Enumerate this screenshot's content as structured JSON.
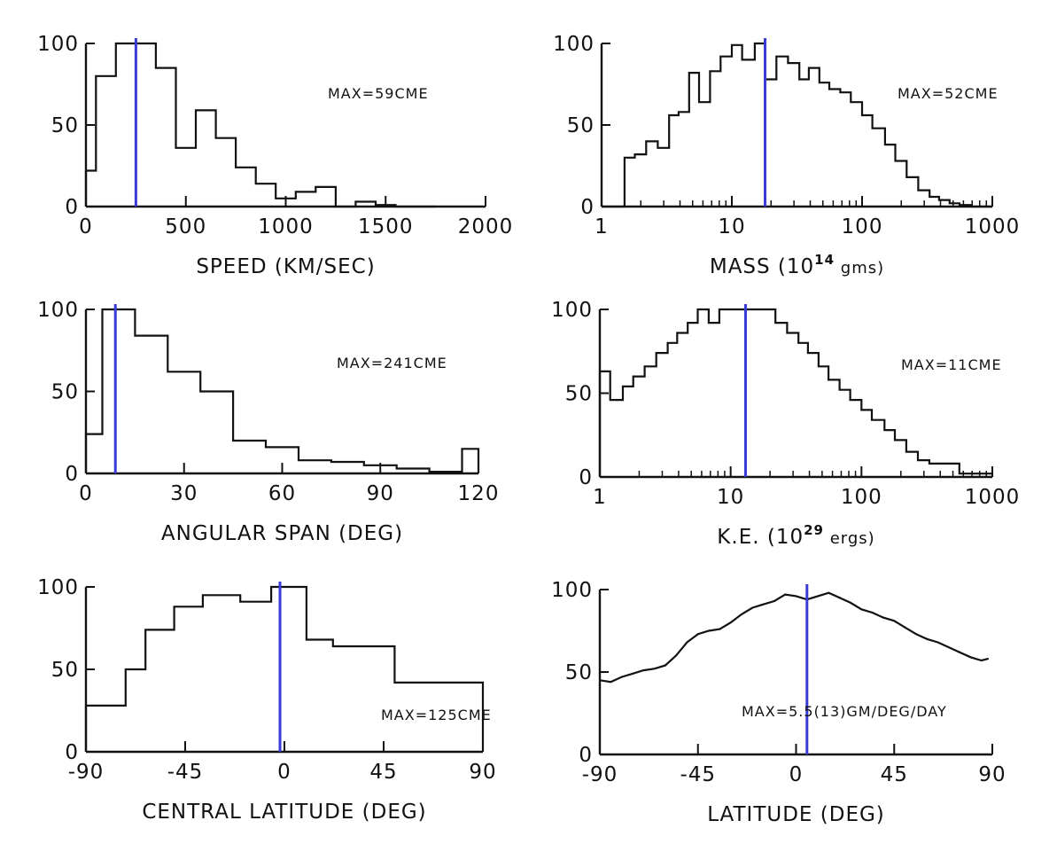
{
  "colors": {
    "marker": "#3a3ad6",
    "ink": "#111111"
  },
  "chart_data": [
    {
      "type": "histogram",
      "xlabel": "SPEED (KM/SEC)",
      "xlabel_sup": "",
      "xlabel_tail": "",
      "x_scale": "linear",
      "xlim": [
        0,
        2000
      ],
      "ylim": [
        0,
        100
      ],
      "xticks": [
        0,
        500,
        1000,
        1500,
        2000
      ],
      "xtick_labels": [
        "0",
        "500",
        "1000",
        "1500",
        "2000"
      ],
      "yticks": [
        0,
        50,
        100
      ],
      "ytick_labels": [
        "0",
        "50",
        "100"
      ],
      "annotation": "MAX=59CME",
      "marker_x": 250,
      "bin_edges": [
        0,
        50,
        150,
        250,
        350,
        450,
        550,
        650,
        750,
        850,
        950,
        1050,
        1150,
        1250,
        1350,
        1450,
        1550,
        1650,
        1750
      ],
      "values": [
        22,
        80,
        100,
        100,
        85,
        36,
        59,
        42,
        24,
        14,
        5,
        9,
        12,
        0,
        3,
        1,
        0,
        0
      ],
      "ymin_line": "minor"
    },
    {
      "type": "histogram",
      "xlabel": "MASS (10",
      "xlabel_sup": "14",
      "xlabel_tail": " gms)",
      "x_scale": "log",
      "xlim": [
        1,
        1000
      ],
      "ylim": [
        0,
        100
      ],
      "xticks": [
        1,
        10,
        100,
        1000
      ],
      "xtick_labels": [
        "1",
        "10",
        "100",
        "1000"
      ],
      "yticks": [
        0,
        50,
        100
      ],
      "ytick_labels": [
        "0",
        "50",
        "100"
      ],
      "annotation": "MAX=52CME",
      "marker_x": 18,
      "bin_edges": [
        1,
        1.2,
        1.5,
        1.8,
        2.2,
        2.7,
        3.3,
        3.9,
        4.7,
        5.6,
        6.8,
        8.2,
        10,
        12,
        15,
        18,
        22,
        27,
        33,
        39,
        47,
        56,
        68,
        82,
        100,
        120,
        150,
        180,
        220,
        270,
        330,
        390,
        470,
        560,
        680,
        820,
        1000
      ],
      "values": [
        0,
        0,
        30,
        32,
        40,
        36,
        56,
        58,
        82,
        64,
        83,
        92,
        99,
        90,
        100,
        78,
        92,
        88,
        78,
        85,
        76,
        72,
        70,
        64,
        56,
        48,
        38,
        28,
        18,
        10,
        6,
        4,
        2,
        1,
        0,
        0
      ]
    },
    {
      "type": "histogram",
      "xlabel": "ANGULAR SPAN (DEG)",
      "xlabel_sup": "",
      "xlabel_tail": "",
      "x_scale": "linear",
      "xlim": [
        0,
        120
      ],
      "ylim": [
        0,
        100
      ],
      "xticks": [
        0,
        30,
        60,
        90,
        120
      ],
      "xtick_labels": [
        "0",
        "30",
        "60",
        "90",
        "120"
      ],
      "yticks": [
        0,
        50,
        100
      ],
      "ytick_labels": [
        "0",
        "50",
        "100"
      ],
      "annotation": "MAX=241CME",
      "marker_x": 9,
      "bin_edges": [
        0,
        5,
        15,
        25,
        35,
        45,
        55,
        65,
        75,
        85,
        95,
        105,
        115,
        120
      ],
      "values": [
        24,
        100,
        84,
        62,
        50,
        20,
        16,
        8,
        7,
        5,
        3,
        1,
        15
      ]
    },
    {
      "type": "histogram",
      "xlabel": "K.E. (10",
      "xlabel_sup": "29",
      "xlabel_tail": " ergs)",
      "x_scale": "log",
      "xlim": [
        1,
        1000
      ],
      "ylim": [
        0,
        100
      ],
      "xticks": [
        1,
        10,
        100,
        1000
      ],
      "xtick_labels": [
        "1",
        "10",
        "100",
        "1000"
      ],
      "yticks": [
        0,
        50,
        100
      ],
      "ytick_labels": [
        "0",
        "50",
        "100"
      ],
      "annotation": "MAX=11CME",
      "marker_x": 13,
      "bin_edges": [
        1,
        1.2,
        1.5,
        1.8,
        2.2,
        2.7,
        3.3,
        3.9,
        4.7,
        5.6,
        6.8,
        8.2,
        10,
        12,
        15,
        18,
        22,
        27,
        33,
        39,
        47,
        56,
        68,
        82,
        100,
        120,
        150,
        180,
        220,
        270,
        330,
        390,
        470,
        560,
        680,
        820,
        1000
      ],
      "values": [
        63,
        46,
        54,
        60,
        66,
        74,
        80,
        86,
        92,
        100,
        92,
        100,
        100,
        100,
        100,
        100,
        92,
        86,
        80,
        74,
        66,
        58,
        52,
        46,
        40,
        34,
        28,
        22,
        15,
        10,
        8,
        8,
        8,
        2,
        2,
        2
      ]
    },
    {
      "type": "histogram",
      "xlabel": "CENTRAL LATITUDE (DEG)",
      "xlabel_sup": "",
      "xlabel_tail": "",
      "x_scale": "linear",
      "xlim": [
        -90,
        90
      ],
      "ylim": [
        0,
        100
      ],
      "xticks": [
        -90,
        -45,
        0,
        45,
        90
      ],
      "xtick_labels": [
        "-90",
        "-45",
        "0",
        "45",
        "90"
      ],
      "yticks": [
        0,
        50,
        100
      ],
      "ytick_labels": [
        "0",
        "50",
        "100"
      ],
      "annotation": "MAX=125CME",
      "marker_x": -2,
      "bin_edges": [
        -90,
        -72,
        -63,
        -50,
        -37,
        -20,
        -6,
        10,
        22,
        50,
        90
      ],
      "values": [
        28,
        50,
        74,
        88,
        95,
        91,
        100,
        68,
        64,
        42
      ]
    },
    {
      "type": "line",
      "xlabel": "LATITUDE (DEG)",
      "xlabel_sup": "",
      "xlabel_tail": "",
      "x_scale": "linear",
      "xlim": [
        -90,
        90
      ],
      "ylim": [
        0,
        100
      ],
      "xticks": [
        -90,
        -45,
        0,
        45,
        90
      ],
      "xtick_labels": [
        "-90",
        "-45",
        "0",
        "45",
        "90"
      ],
      "yticks": [
        0,
        50,
        100
      ],
      "ytick_labels": [
        "0",
        "50",
        "100"
      ],
      "annotation": "MAX=5.5(13)GM/DEG/DAY",
      "marker_x": 5,
      "x": [
        -90,
        -85,
        -80,
        -75,
        -70,
        -65,
        -60,
        -55,
        -50,
        -45,
        -40,
        -35,
        -30,
        -25,
        -20,
        -15,
        -10,
        -5,
        0,
        5,
        10,
        15,
        20,
        25,
        30,
        35,
        40,
        45,
        50,
        55,
        60,
        65,
        70,
        75,
        80,
        85,
        88
      ],
      "y": [
        45,
        44,
        47,
        49,
        51,
        52,
        54,
        60,
        68,
        73,
        75,
        76,
        80,
        85,
        89,
        91,
        93,
        97,
        96,
        94,
        96,
        98,
        95,
        92,
        88,
        86,
        83,
        81,
        77,
        73,
        70,
        68,
        65,
        62,
        59,
        57,
        58
      ]
    }
  ]
}
